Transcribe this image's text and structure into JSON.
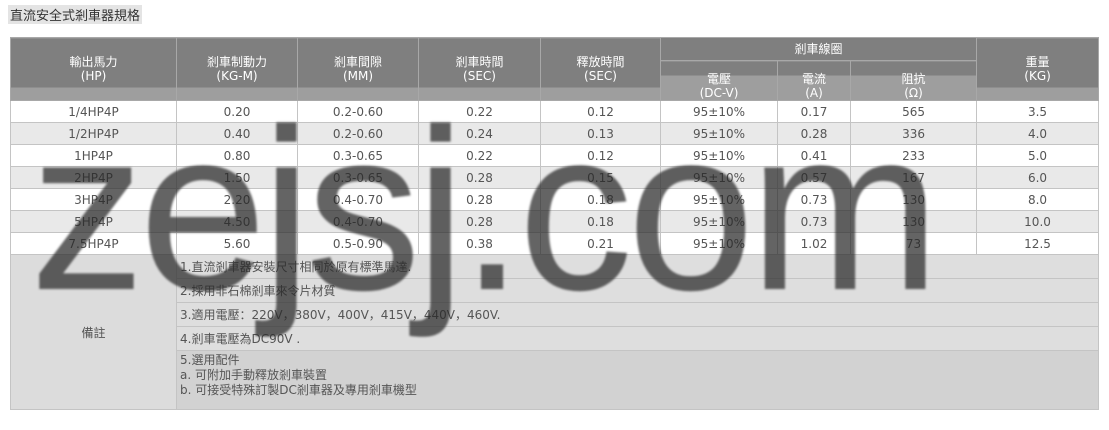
{
  "title": "直流安全式剎車器規格",
  "headers": {
    "hp": "輸出馬力",
    "hp_unit": "(HP)",
    "force": "剎車制動力",
    "force_unit": "(KG-M)",
    "gap": "剎車間隙",
    "gap_unit": "(MM)",
    "brake_time": "剎車時間",
    "brake_unit": "(SEC)",
    "release": "釋放時間",
    "release_unit": "(SEC)",
    "coil": "剎車線圈",
    "voltage": "電壓",
    "voltage_unit": "(DC-V)",
    "current": "電流",
    "current_unit": "(A)",
    "resist": "阻抗",
    "resist_unit": "(Ω)",
    "weight": "重量",
    "weight_unit": "(KG)"
  },
  "rows": [
    [
      "1/4HP4P",
      "0.20",
      "0.2-0.60",
      "0.22",
      "0.12",
      "95±10%",
      "0.17",
      "565",
      "3.5"
    ],
    [
      "1/2HP4P",
      "0.40",
      "0.2-0.60",
      "0.24",
      "0.13",
      "95±10%",
      "0.28",
      "336",
      "4.0"
    ],
    [
      "1HP4P",
      "0.80",
      "0.3-0.65",
      "0.22",
      "0.12",
      "95±10%",
      "0.41",
      "233",
      "5.0"
    ],
    [
      "2HP4P",
      "1.50",
      "0.3-0.65",
      "0.28",
      "0.15",
      "95±10%",
      "0.57",
      "167",
      "6.0"
    ],
    [
      "3HP4P",
      "2.20",
      "0.4-0.70",
      "0.28",
      "0.18",
      "95±10%",
      "0.73",
      "130",
      "8.0"
    ],
    [
      "5HP4P",
      "4.50",
      "0.4-0.70",
      "0.28",
      "0.18",
      "95±10%",
      "0.73",
      "130",
      "10.0"
    ],
    [
      "7.5HP4P",
      "5.60",
      "0.5-0.90",
      "0.38",
      "0.21",
      "95±10%",
      "1.02",
      "73",
      "12.5"
    ]
  ],
  "remarks_label": "備註",
  "notes": [
    "1.直流剎車器安裝尺寸相同於原有標準馬達.",
    "2.採用非石棉剎車來令片材質",
    "3.適用電壓：220V，380V，400V，415V，440V，460V.",
    "4.剎車電壓為DC90V ."
  ],
  "note5": [
    "5.選用配件",
    "a. 可附加手動釋放剎車裝置",
    "b. 可接受特殊訂製DC剎車器及專用剎車機型"
  ],
  "watermark": "zejsj.com"
}
